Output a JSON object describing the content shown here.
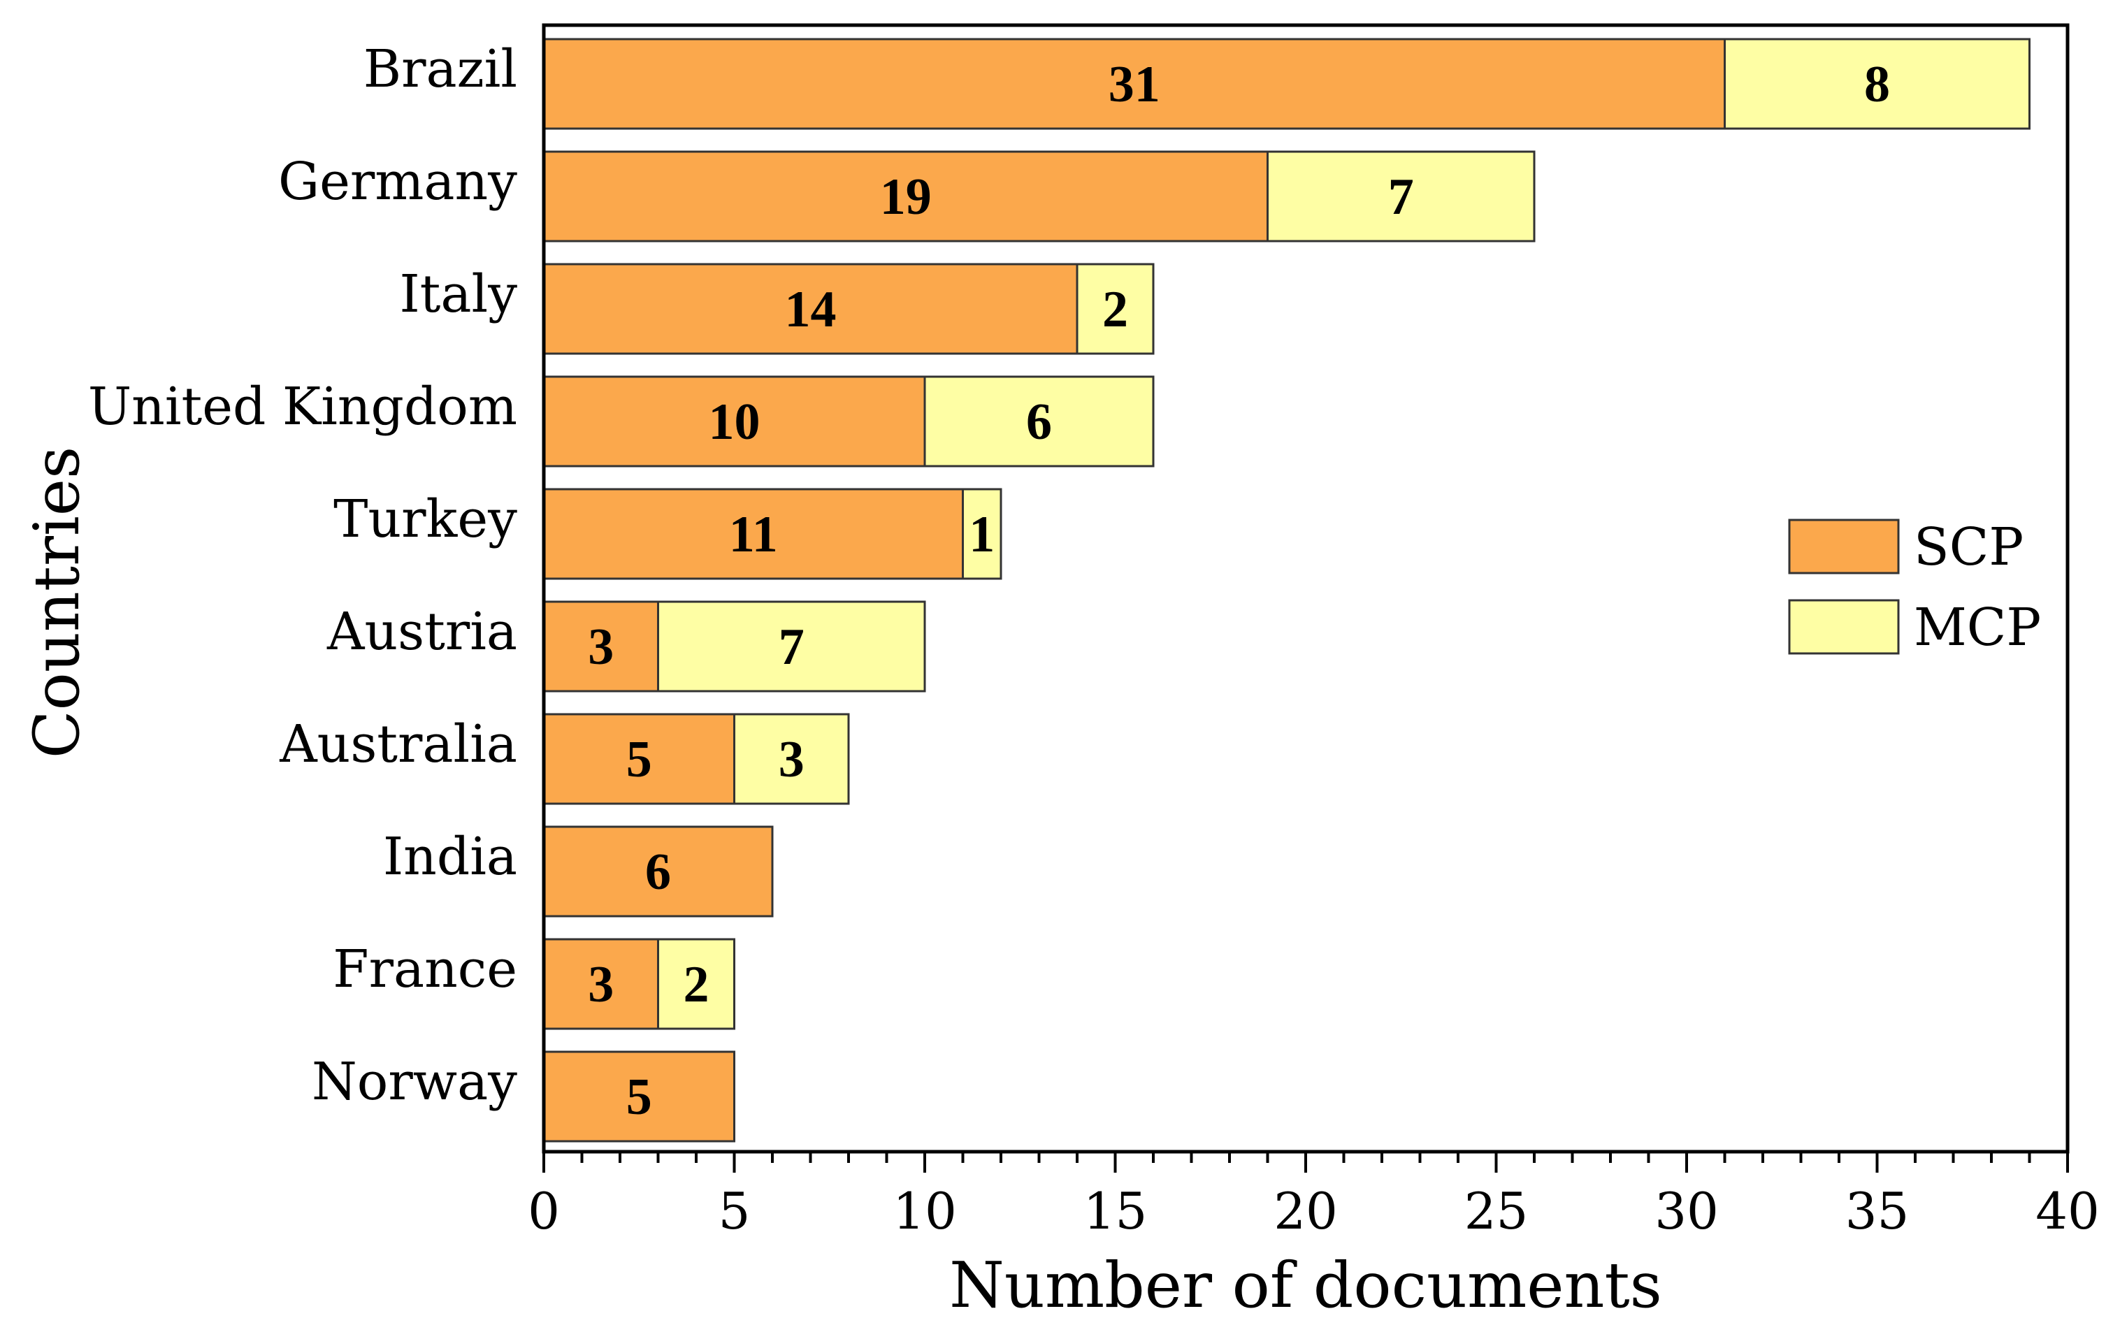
{
  "chart_data": {
    "type": "bar",
    "orientation": "horizontal",
    "stacked": true,
    "title": "",
    "xlabel": "Number of documents",
    "ylabel": "Countries",
    "xlim": [
      0,
      40
    ],
    "x_ticks": [
      0,
      5,
      10,
      15,
      20,
      25,
      30,
      35,
      40
    ],
    "grid": false,
    "legend_position": "right",
    "categories": [
      "Brazil",
      "Germany",
      "Italy",
      "United Kingdom",
      "Turkey",
      "Austria",
      "Australia",
      "India",
      "France",
      "Norway"
    ],
    "series": [
      {
        "name": "SCP",
        "color": "#FBA84C",
        "values": [
          31,
          19,
          14,
          10,
          11,
          3,
          5,
          6,
          3,
          5
        ]
      },
      {
        "name": "MCP",
        "color": "#FEFEA4",
        "values": [
          8,
          7,
          2,
          6,
          1,
          7,
          3,
          0,
          2,
          0
        ]
      }
    ]
  }
}
